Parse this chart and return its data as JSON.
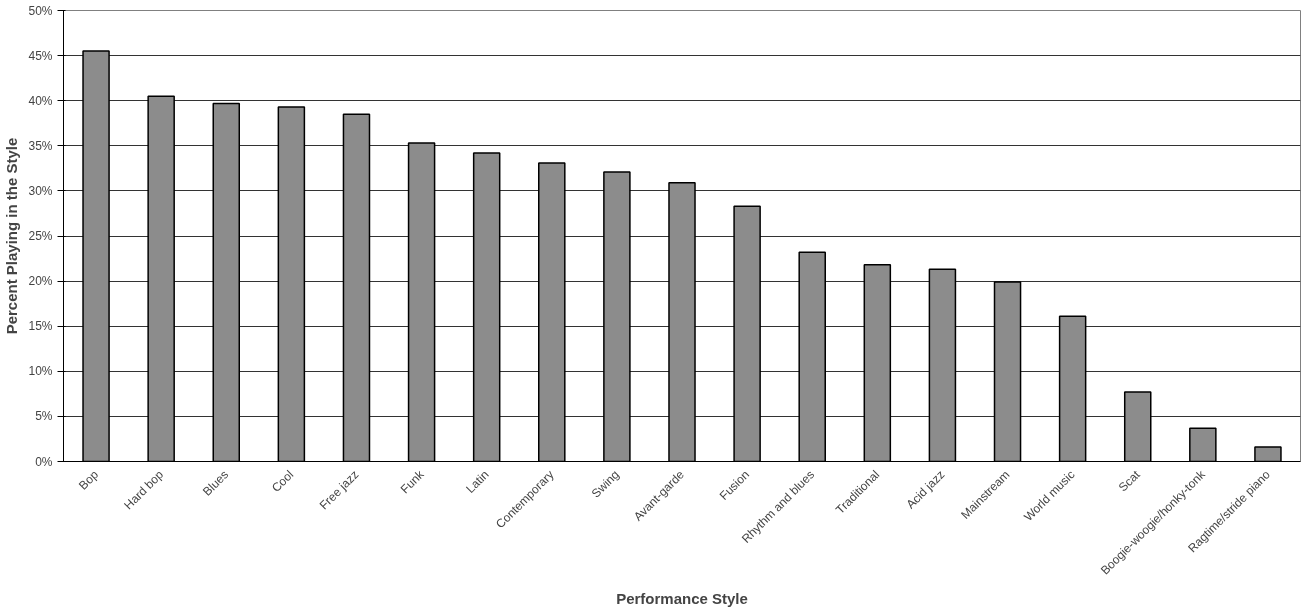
{
  "chart_data": {
    "type": "bar",
    "xlabel": "Performance Style",
    "ylabel": "Percent Playing in the Style",
    "categories": [
      "Bop",
      "Hard bop",
      "Blues",
      "Cool",
      "Free jazz",
      "Funk",
      "Latin",
      "Contemporary",
      "Swing",
      "Avant-garde",
      "Fusion",
      "Rhythm and blues",
      "Traditional",
      "Acid jazz",
      "Mainstream",
      "World music",
      "Scat",
      "Boogie-woogie/honky-tonk",
      "Ragtime/stride piano"
    ],
    "values": [
      45.5,
      40.5,
      39.7,
      39.3,
      38.5,
      35.3,
      34.2,
      33.1,
      32.1,
      30.9,
      28.3,
      23.2,
      21.8,
      21.3,
      19.9,
      16.1,
      7.7,
      3.7,
      1.6
    ],
    "color": "#8c8c8c",
    "ylim": [
      0,
      50
    ],
    "yticks": [
      {
        "value": 0,
        "label": "0%"
      },
      {
        "value": 5,
        "label": "5%"
      },
      {
        "value": 10,
        "label": "10%"
      },
      {
        "value": 15,
        "label": "15%"
      },
      {
        "value": 20,
        "label": "20%"
      },
      {
        "value": 25,
        "label": "25%"
      },
      {
        "value": 30,
        "label": "30%"
      },
      {
        "value": 35,
        "label": "35%"
      },
      {
        "value": 40,
        "label": "40%"
      },
      {
        "value": 45,
        "label": "45%"
      },
      {
        "value": 50,
        "label": "50%"
      }
    ],
    "grid": "y"
  }
}
